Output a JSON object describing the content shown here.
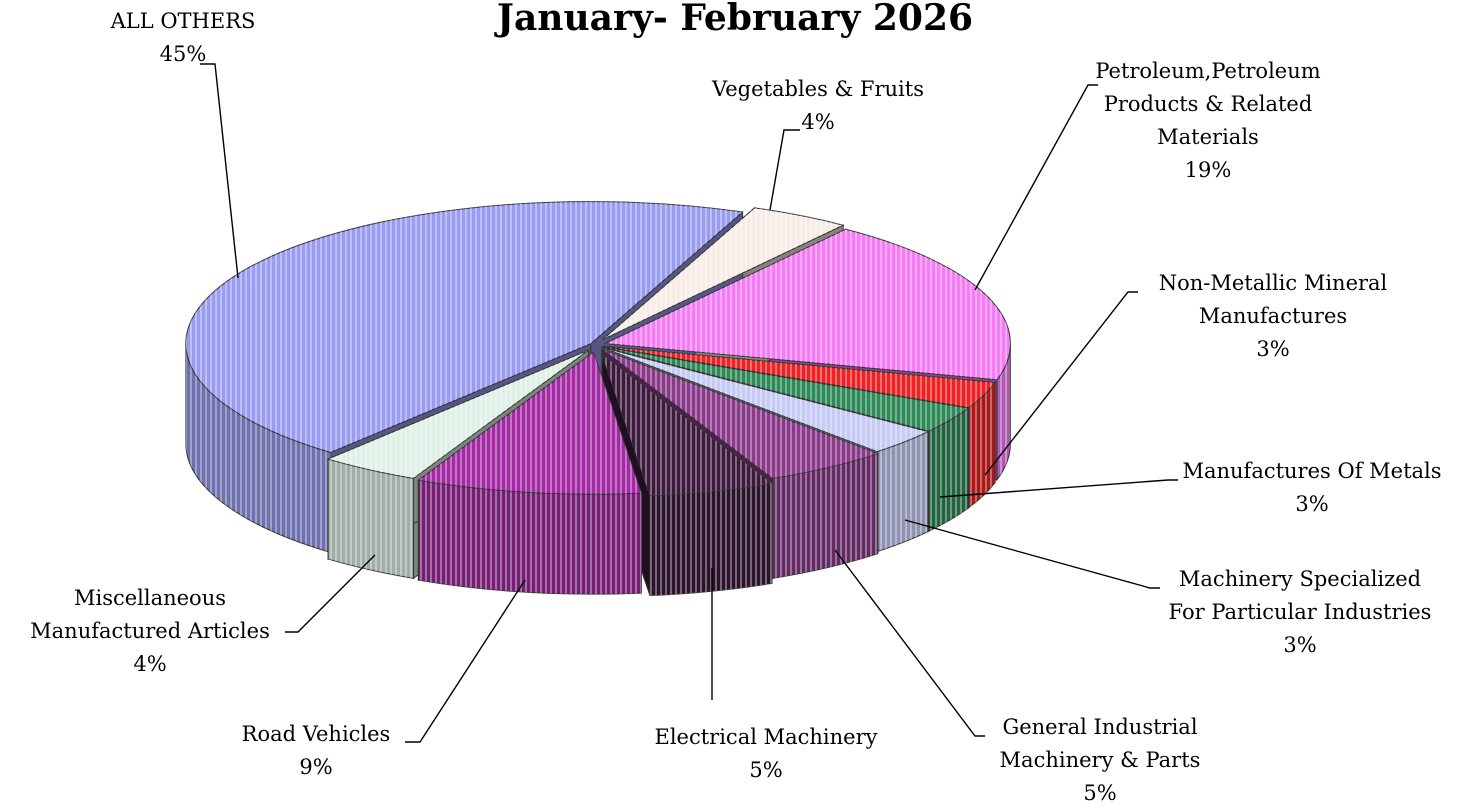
{
  "chart_data": {
    "type": "pie",
    "style": "3d-exploded",
    "title": "January- February 2026",
    "legend": "none",
    "slices": [
      {
        "label": "Vegetables & Fruits",
        "label_lines": [
          "Vegetables & Fruits"
        ],
        "value": 4,
        "value_label": "4%",
        "color": "#f7ece6"
      },
      {
        "label": "Petroleum,Petroleum Products & Related Materials",
        "label_lines": [
          "Petroleum,Petroleum",
          "Products & Related",
          "Materials"
        ],
        "value": 19,
        "value_label": "19%",
        "color": "#f47cf4"
      },
      {
        "label": "Non-Metallic Mineral Manufactures",
        "label_lines": [
          "Non-Metallic Mineral",
          "Manufactures"
        ],
        "value": 3,
        "value_label": "3%",
        "color": "#ee2222"
      },
      {
        "label": "Manufactures Of Metals",
        "label_lines": [
          "Manufactures Of Metals"
        ],
        "value": 3,
        "value_label": "3%",
        "color": "#2e8b57"
      },
      {
        "label": "Machinery Specialized For Particular Industries",
        "label_lines": [
          "Machinery Specialized",
          "For Particular Industries"
        ],
        "value": 3,
        "value_label": "3%",
        "color": "#c6cbf5"
      },
      {
        "label": "General Industrial Machinery & Parts",
        "label_lines": [
          "General Industrial",
          "Machinery & Parts"
        ],
        "value": 5,
        "value_label": "5%",
        "color": "#8b3a8b"
      },
      {
        "label": "Electrical Machinery",
        "label_lines": [
          "Electrical Machinery"
        ],
        "value": 5,
        "value_label": "5%",
        "color": "#3d1a3d"
      },
      {
        "label": "Road Vehicles",
        "label_lines": [
          "Road Vehicles"
        ],
        "value": 9,
        "value_label": "9%",
        "color": "#a42aa4"
      },
      {
        "label": "Miscellaneous Manufactured Articles",
        "label_lines": [
          "Miscellaneous",
          "Manufactured Articles"
        ],
        "value": 4,
        "value_label": "4%",
        "color": "#dff0e6"
      },
      {
        "label": "ALL OTHERS",
        "label_lines": [
          "ALL OTHERS"
        ],
        "value": 45,
        "value_label": "45%",
        "color": "#9a9cf2"
      }
    ]
  }
}
